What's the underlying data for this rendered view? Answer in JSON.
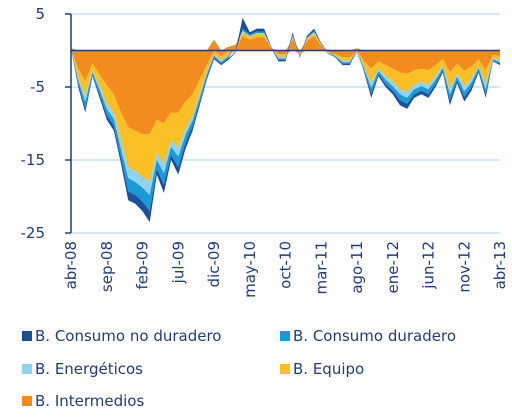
{
  "chart_data": {
    "type": "stacked_area",
    "categories": [
      "abr-08",
      null,
      null,
      null,
      null,
      "sep-08",
      null,
      null,
      null,
      null,
      "feb-09",
      null,
      null,
      null,
      null,
      "jul-09",
      null,
      null,
      null,
      null,
      "dic-09",
      null,
      null,
      null,
      null,
      "may-10",
      null,
      null,
      null,
      null,
      "oct-10",
      null,
      null,
      null,
      null,
      "mar-11",
      null,
      null,
      null,
      null,
      "ago-11",
      null,
      null,
      null,
      null,
      "ene-12",
      null,
      null,
      null,
      null,
      "jun-12",
      null,
      null,
      null,
      null,
      "nov-12",
      null,
      null,
      null,
      null,
      "abr-13"
    ],
    "series": [
      {
        "name": "B. Consumo no duradero",
        "color": "#1b4f9c",
        "values": [
          0.1,
          -0.4,
          -0.6,
          -0.2,
          -0.5,
          -0.6,
          -0.7,
          -0.8,
          -1.2,
          -1.2,
          -1.3,
          -1.5,
          -0.8,
          -1.1,
          -0.7,
          -1.0,
          -0.8,
          -0.6,
          -0.4,
          -0.3,
          -0.2,
          -0.2,
          -0.2,
          -0.1,
          1.5,
          0.3,
          0.4,
          0.4,
          0.1,
          -0.2,
          -0.2,
          0.3,
          -0.1,
          0.2,
          0.3,
          0.1,
          0,
          -0.1,
          -0.2,
          -0.2,
          0,
          -0.2,
          -0.6,
          -0.3,
          -0.4,
          -0.5,
          -0.7,
          -0.7,
          -0.5,
          -0.5,
          -0.5,
          -0.4,
          -0.3,
          -0.7,
          -0.4,
          -0.6,
          -0.5,
          -0.3,
          -0.5,
          -0.1,
          -0.2
        ]
      },
      {
        "name": "B. Consumo duradero",
        "color": "#1a9ad6",
        "values": [
          0,
          -0.5,
          -0.9,
          -0.3,
          -0.6,
          -0.9,
          -0.9,
          -1.2,
          -1.8,
          -1.8,
          -1.9,
          -2.2,
          -1.2,
          -1.6,
          -1.1,
          -1.5,
          -1.1,
          -0.8,
          -0.6,
          -0.4,
          -0.3,
          -0.2,
          -0.3,
          0,
          0.3,
          0.2,
          0.2,
          0.2,
          0,
          -0.2,
          -0.2,
          0.2,
          -0.1,
          0.1,
          0.2,
          0.1,
          -0.1,
          -0.1,
          -0.2,
          -0.2,
          -0.1,
          -0.3,
          -0.8,
          -0.4,
          -0.6,
          -0.6,
          -0.8,
          -0.8,
          -0.7,
          -0.6,
          -0.7,
          -0.6,
          -0.3,
          -0.8,
          -0.5,
          -0.8,
          -0.6,
          -0.3,
          -0.7,
          -0.2,
          -0.2
        ]
      },
      {
        "name": "B. Energéticos",
        "color": "#8fd3f0",
        "values": [
          0,
          -0.4,
          -0.7,
          -0.3,
          -0.5,
          -0.8,
          -0.8,
          -1.1,
          -1.5,
          -1.5,
          -1.5,
          -1.8,
          -1.0,
          -1.3,
          -0.9,
          -1.2,
          -0.8,
          -0.6,
          -0.5,
          -0.3,
          -0.2,
          -0.2,
          -0.2,
          0,
          0.2,
          0.1,
          0.1,
          0.2,
          0,
          -0.2,
          -0.2,
          0.1,
          -0.1,
          0.1,
          0.1,
          0,
          -0.1,
          -0.1,
          -0.2,
          -0.2,
          -0.1,
          -0.3,
          -0.6,
          -0.3,
          -0.5,
          -0.6,
          -0.7,
          -0.8,
          -0.6,
          -0.6,
          -0.6,
          -0.5,
          -0.3,
          -0.7,
          -0.4,
          -0.7,
          -0.5,
          -0.3,
          -0.6,
          -0.2,
          -0.2
        ]
      },
      {
        "name": "B. Equipo",
        "color": "#fbbf26",
        "values": [
          0.1,
          -1.2,
          -2.1,
          -0.9,
          -1.6,
          -2.4,
          -2.6,
          -3.9,
          -5.5,
          -5.5,
          -5.8,
          -6.5,
          -4.5,
          -5.5,
          -3.8,
          -4.8,
          -3.8,
          -3.0,
          -2.0,
          -1.0,
          -0.5,
          -0.6,
          -0.6,
          -0.2,
          0.5,
          0.4,
          0.5,
          0.4,
          0.1,
          -0.4,
          -0.4,
          0.4,
          -0.3,
          0.3,
          0.4,
          0.2,
          -0.1,
          -0.2,
          -0.5,
          -0.5,
          -0.1,
          -0.7,
          -2.0,
          -1.0,
          -1.5,
          -1.8,
          -2.3,
          -2.5,
          -2.0,
          -1.8,
          -2.0,
          -1.5,
          -0.9,
          -2.3,
          -1.4,
          -2.1,
          -1.7,
          -0.9,
          -2.0,
          -0.4,
          -0.6
        ]
      },
      {
        "name": "B. Intermedios",
        "color": "#f28c1e",
        "values": [
          0.3,
          -2.5,
          -4.2,
          -1.8,
          -3.3,
          -4.8,
          -6.0,
          -8.5,
          -10.5,
          -11.0,
          -11.5,
          -11.5,
          -9.5,
          -10.0,
          -8.5,
          -8.5,
          -7.0,
          -6.0,
          -4.0,
          -2.0,
          1.5,
          -0.8,
          0.5,
          0.8,
          2.0,
          1.5,
          1.8,
          1.8,
          0.3,
          -0.5,
          -0.5,
          1.5,
          -0.4,
          1.3,
          2.0,
          0.6,
          -0.2,
          -0.5,
          -0.9,
          -0.9,
          0.3,
          -1.5,
          -2.5,
          -1.5,
          -2.0,
          -2.5,
          -3.0,
          -3.2,
          -2.7,
          -2.5,
          -2.7,
          -2.0,
          -1.2,
          -3.0,
          -1.8,
          -2.8,
          -2.2,
          -1.2,
          -2.7,
          -0.6,
          -0.8
        ]
      }
    ],
    "ylim": [
      -25,
      5
    ],
    "yticks": [
      5,
      -5,
      -15,
      -25
    ],
    "grid": true
  }
}
